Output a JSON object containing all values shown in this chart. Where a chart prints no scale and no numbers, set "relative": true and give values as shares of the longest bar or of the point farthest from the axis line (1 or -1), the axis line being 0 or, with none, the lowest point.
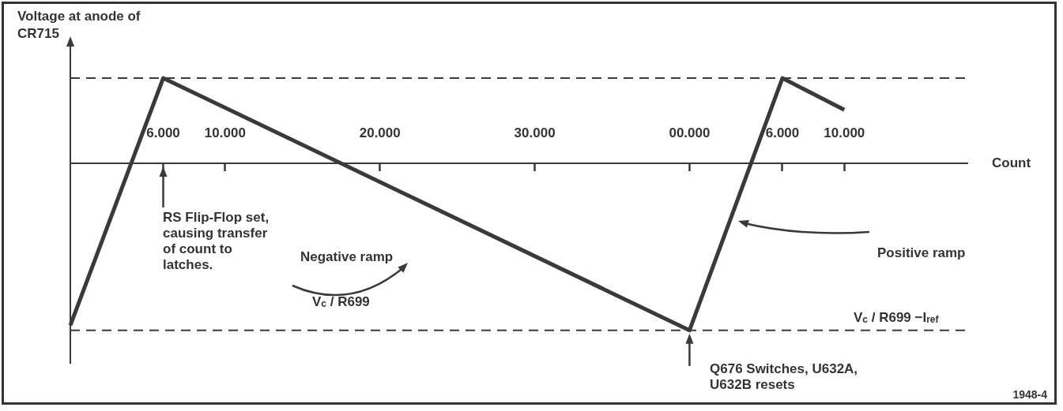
{
  "chart_data": {
    "type": "line",
    "relative": true,
    "ylabel": "Voltage at anode of CR715",
    "xlabel": "Count",
    "categories": [
      null,
      null,
      null,
      "6.000",
      null,
      "10.000",
      null,
      null,
      null,
      null,
      "20.000",
      null,
      null,
      null,
      null,
      "30.000",
      null,
      null,
      null,
      null,
      "00.000",
      null,
      null,
      "6.000",
      null,
      "10.000",
      null,
      null,
      null,
      null
    ],
    "series": [
      {
        "color": "#3a3a3a",
        "values": [
          -0.97,
          null,
          null,
          0.51,
          null,
          null,
          null,
          null,
          null,
          null,
          null,
          null,
          null,
          null,
          null,
          null,
          null,
          null,
          null,
          null,
          -1,
          null,
          null,
          0.51,
          null,
          0.32,
          null,
          null,
          null,
          null
        ]
      }
    ],
    "ref_lines": [
      {
        "axis": "y",
        "value": 0.51,
        "line_style": "dashed",
        "color": "#3a3a3a"
      },
      {
        "axis": "y",
        "value": -1,
        "line_style": "dashed",
        "color": "#3a3a3a"
      }
    ],
    "annotations": [
      "RS Flip-Flop set, causing transfer of count to latches.",
      "Q676 Switches, U632A, U632B resets",
      "Negative ramp",
      "V$_{c}$ / R699",
      "Positive ramp",
      "V$_{c}$ / R699 −I$_{ref}$",
      "1948-4"
    ],
    "grid": false,
    "legend": false,
    "marker": "none",
    "line_style": "solid"
  }
}
